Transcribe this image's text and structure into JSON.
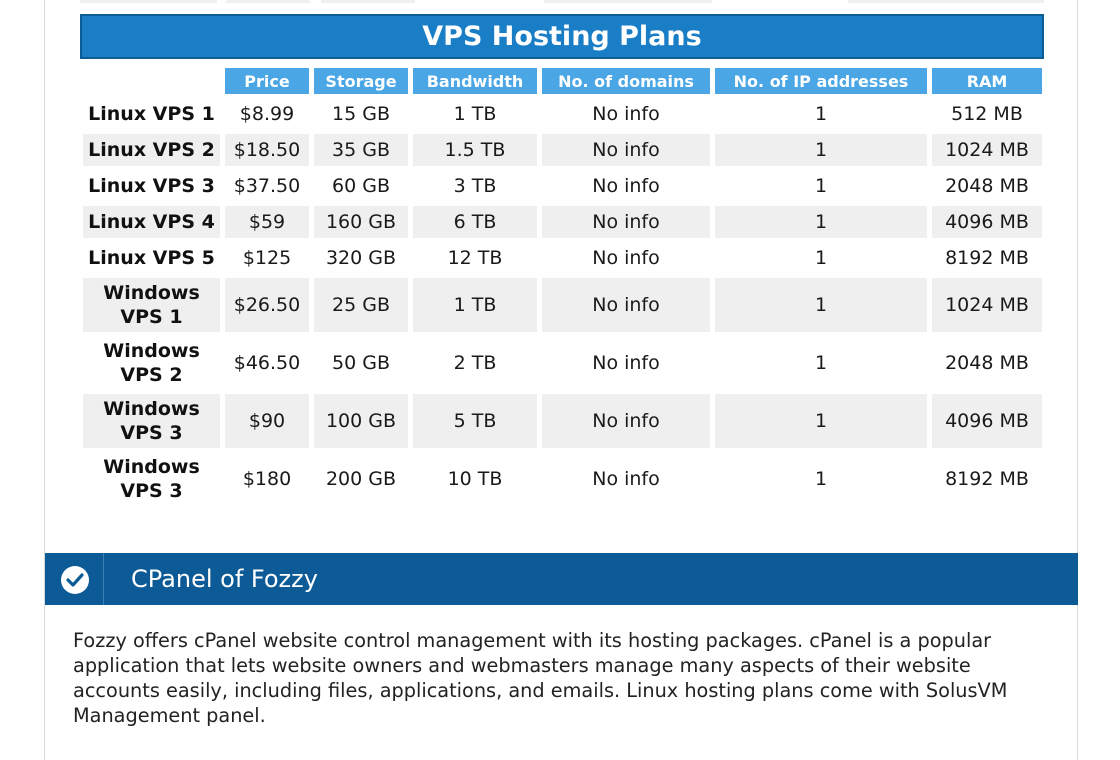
{
  "section_title": "VPS Hosting Plans",
  "columns": [
    "",
    "Price",
    "Storage",
    "Bandwidth",
    "No. of domains",
    "No. of IP addresses",
    "RAM"
  ],
  "plans": [
    {
      "name": "Linux VPS 1",
      "price": "$8.99",
      "storage": "15 GB",
      "bandwidth": "1 TB",
      "domains": "No info",
      "ips": "1",
      "ram": "512 MB"
    },
    {
      "name": "Linux VPS 2",
      "price": "$18.50",
      "storage": "35 GB",
      "bandwidth": "1.5 TB",
      "domains": "No info",
      "ips": "1",
      "ram": "1024 MB"
    },
    {
      "name": "Linux VPS 3",
      "price": "$37.50",
      "storage": "60 GB",
      "bandwidth": "3 TB",
      "domains": "No info",
      "ips": "1",
      "ram": "2048 MB"
    },
    {
      "name": "Linux VPS 4",
      "price": "$59",
      "storage": "160 GB",
      "bandwidth": "6 TB",
      "domains": "No info",
      "ips": "1",
      "ram": "4096 MB"
    },
    {
      "name": "Linux VPS 5",
      "price": "$125",
      "storage": "320 GB",
      "bandwidth": "12 TB",
      "domains": "No info",
      "ips": "1",
      "ram": "8192 MB"
    },
    {
      "name_line1": "Windows",
      "name_line2": "VPS 1",
      "price": "$26.50",
      "storage": "25 GB",
      "bandwidth": "1 TB",
      "domains": "No info",
      "ips": "1",
      "ram": "1024 MB"
    },
    {
      "name_line1": "Windows",
      "name_line2": "VPS 2",
      "price": "$46.50",
      "storage": "50 GB",
      "bandwidth": "2 TB",
      "domains": "No info",
      "ips": "1",
      "ram": "2048 MB"
    },
    {
      "name_line1": "Windows",
      "name_line2": "VPS 3",
      "price": "$90",
      "storage": "100 GB",
      "bandwidth": "5 TB",
      "domains": "No info",
      "ips": "1",
      "ram": "4096 MB"
    },
    {
      "name_line1": "Windows",
      "name_line2": "VPS 3",
      "price": "$180",
      "storage": "200 GB",
      "bandwidth": "10 TB",
      "domains": "No info",
      "ips": "1",
      "ram": "8192 MB"
    }
  ],
  "cpanel": {
    "title": "CPanel of Fozzy",
    "icon": "check-circle-icon",
    "description": "Fozzy offers cPanel website control management with its hosting packages. cPanel is a popular application that lets website owners and webmasters manage many aspects of their website accounts easily, including files, applications, and emails. Linux hosting plans come with SolusVM Management panel."
  },
  "colors": {
    "banner": "#1a7ec6",
    "header_cell": "#4aa6e4",
    "cpanel_bar": "#0c5a96",
    "row_shade": "#efefef"
  }
}
